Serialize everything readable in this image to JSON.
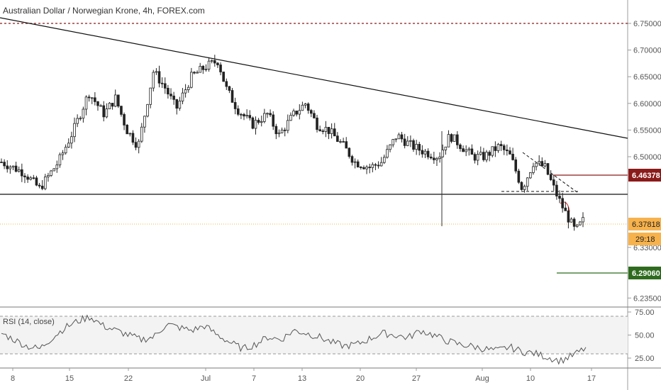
{
  "chart_data": {
    "type": "candlestick",
    "title": "Australian Dollar / Norwegian Krone, 4h, FOREX.com",
    "price_axis": {
      "ticks": [
        "6.75000",
        "6.70000",
        "6.65000",
        "6.60000",
        "6.55000",
        "6.50000",
        "6.33000",
        "6.23500"
      ],
      "range": [
        6.21,
        6.79
      ]
    },
    "time_axis": {
      "ticks": [
        "8",
        "15",
        "22",
        "Jul",
        "7",
        "13",
        "20",
        "27",
        "Aug",
        "10",
        "17"
      ]
    },
    "key_levels": [
      {
        "role": "resistance",
        "price": 6.46378,
        "label": "6.46378",
        "color": "#8b1a1a"
      },
      {
        "role": "last",
        "price": 6.37818,
        "label": "6.37818",
        "color": "#f7b24c"
      },
      {
        "role": "target",
        "price": 6.2906,
        "label": "6.29060",
        "color": "#2e6b1f"
      }
    ],
    "countdown": "29:18",
    "horizontal_support": 6.43,
    "top_dashed_level": 6.755,
    "close_path": [
      [
        0,
        6.49
      ],
      [
        6,
        6.47
      ],
      [
        10,
        6.44
      ],
      [
        15,
        6.49
      ],
      [
        19,
        6.55
      ],
      [
        23,
        6.62
      ],
      [
        27,
        6.58
      ],
      [
        30,
        6.61
      ],
      [
        33,
        6.55
      ],
      [
        36,
        6.52
      ],
      [
        40,
        6.66
      ],
      [
        43,
        6.63
      ],
      [
        46,
        6.59
      ],
      [
        50,
        6.65
      ],
      [
        54,
        6.67
      ],
      [
        57,
        6.68
      ],
      [
        59,
        6.63
      ],
      [
        62,
        6.59
      ],
      [
        66,
        6.56
      ],
      [
        70,
        6.58
      ],
      [
        73,
        6.54
      ],
      [
        77,
        6.58
      ],
      [
        80,
        6.6
      ],
      [
        83,
        6.56
      ],
      [
        86,
        6.55
      ],
      [
        90,
        6.52
      ],
      [
        93,
        6.49
      ],
      [
        97,
        6.48
      ],
      [
        100,
        6.49
      ],
      [
        104,
        6.54
      ],
      [
        108,
        6.52
      ],
      [
        111,
        6.51
      ],
      [
        115,
        6.5
      ],
      [
        118,
        6.54
      ],
      [
        121,
        6.52
      ],
      [
        124,
        6.5
      ],
      [
        127,
        6.5
      ],
      [
        131,
        6.52
      ],
      [
        134,
        6.5
      ],
      [
        137,
        6.44
      ],
      [
        140,
        6.49
      ],
      [
        143,
        6.48
      ],
      [
        146,
        6.43
      ],
      [
        148,
        6.4
      ],
      [
        151,
        6.36
      ],
      [
        153,
        6.38
      ]
    ],
    "rsi": {
      "label": "RSI (14, close)",
      "levels": [
        70,
        30
      ],
      "ticks": [
        "75.00",
        "50.00",
        "25.00"
      ],
      "range": [
        15,
        78
      ],
      "values": [
        52,
        45,
        38,
        35,
        47,
        58,
        65,
        70,
        60,
        55,
        50,
        45,
        48,
        62,
        58,
        55,
        60,
        50,
        42,
        35,
        40,
        48,
        45,
        55,
        52,
        48,
        42,
        38,
        40,
        46,
        52,
        50,
        47,
        55,
        50,
        44,
        40,
        38,
        35,
        33,
        37,
        32,
        30,
        26,
        22,
        28,
        36
      ]
    }
  }
}
